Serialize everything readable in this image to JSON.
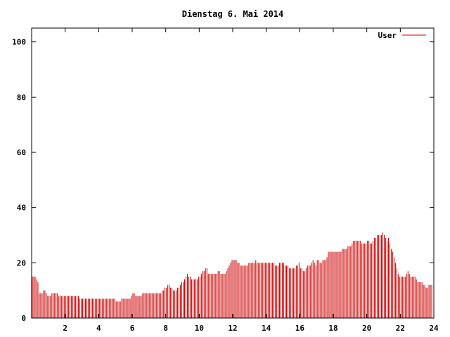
{
  "chart_data": {
    "type": "bar",
    "title": "Dienstag 6. Mai 2014",
    "xlabel": "",
    "ylabel": "",
    "xlim": [
      0,
      24
    ],
    "ylim": [
      0,
      105
    ],
    "xticks": [
      2,
      4,
      6,
      8,
      10,
      12,
      14,
      16,
      18,
      20,
      22,
      24
    ],
    "yticks": [
      0,
      20,
      40,
      60,
      80,
      100
    ],
    "legend": {
      "position": "top-right",
      "label": "User"
    },
    "series": [
      {
        "name": "User",
        "color": "#cc0000",
        "sample_interval_minutes": 5,
        "values": [
          15,
          15,
          15,
          14,
          13,
          9,
          9,
          9,
          10,
          10,
          9,
          8,
          8,
          8,
          9,
          9,
          9,
          9,
          9,
          8,
          8,
          8,
          8,
          8,
          8,
          8,
          8,
          8,
          8,
          8,
          8,
          8,
          8,
          8,
          7,
          7,
          7,
          7,
          7,
          7,
          7,
          7,
          7,
          7,
          7,
          7,
          7,
          7,
          7,
          7,
          7,
          7,
          7,
          7,
          7,
          7,
          7,
          7,
          7,
          7,
          6,
          6,
          6,
          6,
          7,
          7,
          7,
          7,
          7,
          7,
          7,
          8,
          9,
          9,
          8,
          8,
          8,
          8,
          8,
          9,
          9,
          9,
          9,
          9,
          9,
          9,
          9,
          9,
          9,
          9,
          9,
          9,
          9,
          10,
          10,
          11,
          11,
          12,
          12,
          11,
          11,
          10,
          10,
          10,
          11,
          11,
          12,
          13,
          13,
          14,
          15,
          16,
          15,
          15,
          14,
          14,
          14,
          14,
          14,
          15,
          15,
          16,
          17,
          17,
          18,
          18,
          16,
          16,
          16,
          16,
          16,
          16,
          16,
          17,
          17,
          16,
          16,
          16,
          16,
          17,
          18,
          19,
          20,
          21,
          21,
          21,
          21,
          20,
          20,
          19,
          19,
          19,
          19,
          19,
          19,
          20,
          20,
          20,
          20,
          20,
          21,
          20,
          20,
          20,
          20,
          20,
          20,
          20,
          20,
          20,
          20,
          20,
          20,
          20,
          19,
          19,
          19,
          20,
          20,
          20,
          20,
          19,
          19,
          19,
          18,
          18,
          18,
          18,
          18,
          19,
          19,
          20,
          18,
          18,
          17,
          17,
          18,
          19,
          19,
          19,
          20,
          21,
          20,
          19,
          21,
          21,
          20,
          20,
          21,
          21,
          21,
          22,
          24,
          24,
          24,
          24,
          24,
          24,
          24,
          24,
          24,
          24,
          25,
          25,
          25,
          25,
          26,
          26,
          26,
          27,
          28,
          28,
          28,
          28,
          28,
          28,
          27,
          27,
          27,
          27,
          28,
          28,
          27,
          27,
          28,
          29,
          29,
          30,
          30,
          30,
          30,
          31,
          30,
          29,
          28,
          29,
          27,
          25,
          24,
          22,
          20,
          18,
          16,
          15,
          15,
          15,
          15,
          15,
          16,
          17,
          16,
          15,
          15,
          15,
          15,
          14,
          13,
          13,
          13,
          13,
          12,
          12,
          11,
          11,
          12,
          12,
          12
        ]
      }
    ]
  }
}
